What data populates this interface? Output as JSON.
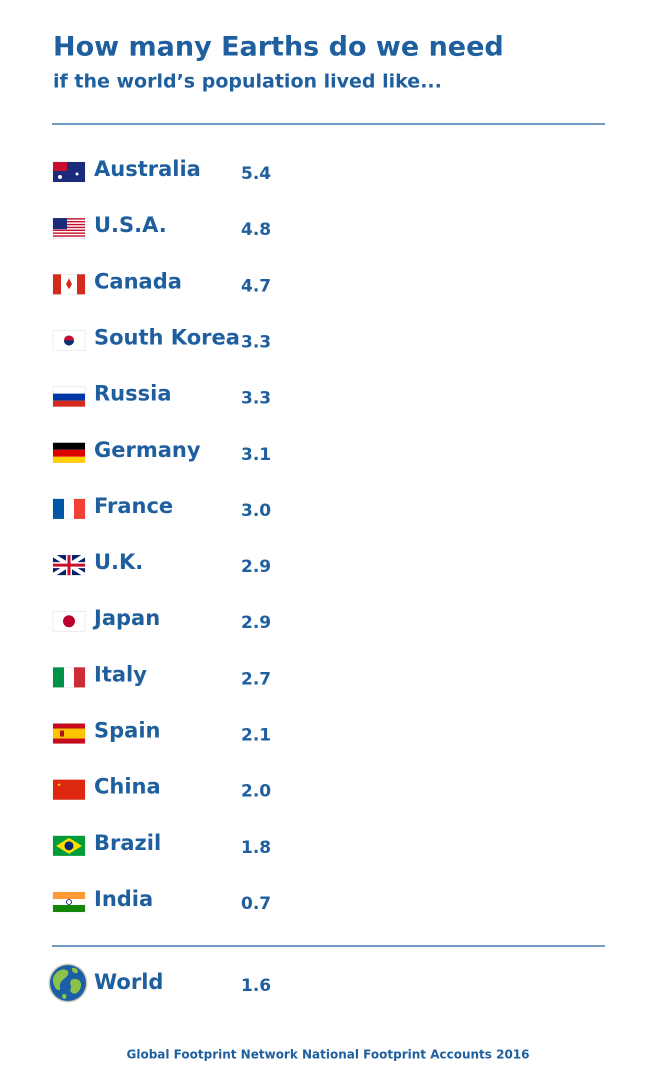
{
  "chart_data": {
    "type": "pictogram",
    "title": "How many Earths do we need",
    "subtitle": "if the world’s population lived like...",
    "categories": [
      "Australia",
      "U.S.A.",
      "Canada",
      "South Korea",
      "Russia",
      "Germany",
      "France",
      "U.K.",
      "Japan",
      "Italy",
      "Spain",
      "China",
      "Brazil",
      "India"
    ],
    "values": [
      5.4,
      4.8,
      4.7,
      3.3,
      3.3,
      3.1,
      3.0,
      2.9,
      2.9,
      2.7,
      2.1,
      2.0,
      1.8,
      0.7
    ],
    "value_labels": [
      "5.4",
      "4.8",
      "4.7",
      "3.3",
      "3.3",
      "3.1",
      "3.0",
      "2.9",
      "2.9",
      "2.7",
      "2.1",
      "2.0",
      "1.8",
      "0.7"
    ],
    "total": {
      "category": "World",
      "value": 1.6,
      "value_label": "1.6"
    },
    "source": "Global Footprint Network National Footprint Accounts 2016"
  }
}
